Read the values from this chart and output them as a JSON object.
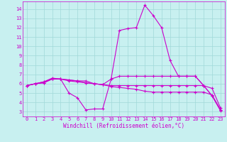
{
  "xlabel": "Windchill (Refroidissement éolien,°C)",
  "background_color": "#c8f0f0",
  "grid_color": "#a0d8d8",
  "line_color": "#cc00cc",
  "x_ticks": [
    0,
    1,
    2,
    3,
    4,
    5,
    6,
    7,
    8,
    9,
    10,
    11,
    12,
    13,
    14,
    15,
    16,
    17,
    18,
    19,
    20,
    21,
    22,
    23
  ],
  "y_ticks": [
    3,
    4,
    5,
    6,
    7,
    8,
    9,
    10,
    11,
    12,
    13,
    14
  ],
  "ylim": [
    2.5,
    14.8
  ],
  "xlim": [
    -0.5,
    23.5
  ],
  "series": [
    {
      "x": [
        0,
        1,
        2,
        3,
        4,
        5,
        6,
        7,
        8,
        9,
        10,
        11,
        12,
        13,
        14,
        15,
        16,
        17,
        18,
        19,
        20,
        21,
        22,
        23
      ],
      "y": [
        5.8,
        6.0,
        6.1,
        6.5,
        6.5,
        5.0,
        4.5,
        3.2,
        3.3,
        3.3,
        6.5,
        11.7,
        11.9,
        12.0,
        14.4,
        13.3,
        12.0,
        8.5,
        6.8,
        6.8,
        6.8,
        5.8,
        4.7,
        3.1
      ]
    },
    {
      "x": [
        0,
        1,
        2,
        3,
        4,
        5,
        6,
        7,
        8,
        9,
        10,
        11,
        12,
        13,
        14,
        15,
        16,
        17,
        18,
        19,
        20,
        21,
        22,
        23
      ],
      "y": [
        5.8,
        6.0,
        6.2,
        6.5,
        6.5,
        6.4,
        6.3,
        6.1,
        6.0,
        5.9,
        5.7,
        5.6,
        5.5,
        5.4,
        5.2,
        5.1,
        5.1,
        5.1,
        5.1,
        5.1,
        5.1,
        5.1,
        4.8,
        3.2
      ]
    },
    {
      "x": [
        0,
        1,
        2,
        3,
        4,
        5,
        6,
        7,
        8,
        9,
        10,
        11,
        12,
        13,
        14,
        15,
        16,
        17,
        18,
        19,
        20,
        21,
        22,
        23
      ],
      "y": [
        5.8,
        6.0,
        6.1,
        6.5,
        6.5,
        6.4,
        6.3,
        6.3,
        6.0,
        5.9,
        5.8,
        5.8,
        5.8,
        5.8,
        5.8,
        5.8,
        5.8,
        5.8,
        5.8,
        5.8,
        5.8,
        5.8,
        5.5,
        3.4
      ]
    },
    {
      "x": [
        0,
        1,
        2,
        3,
        4,
        5,
        6,
        7,
        8,
        9,
        10,
        11,
        12,
        13,
        14,
        15,
        16,
        17,
        18,
        19,
        20,
        21,
        22,
        23
      ],
      "y": [
        5.8,
        6.0,
        6.2,
        6.6,
        6.5,
        6.3,
        6.2,
        6.1,
        6.0,
        5.9,
        6.5,
        6.8,
        6.8,
        6.8,
        6.8,
        6.8,
        6.8,
        6.8,
        6.8,
        6.8,
        6.8,
        5.8,
        4.7,
        3.2
      ]
    }
  ],
  "tick_fontsize": 5,
  "xlabel_fontsize": 5.5,
  "marker": "+",
  "markersize": 2.5,
  "linewidth": 0.8
}
